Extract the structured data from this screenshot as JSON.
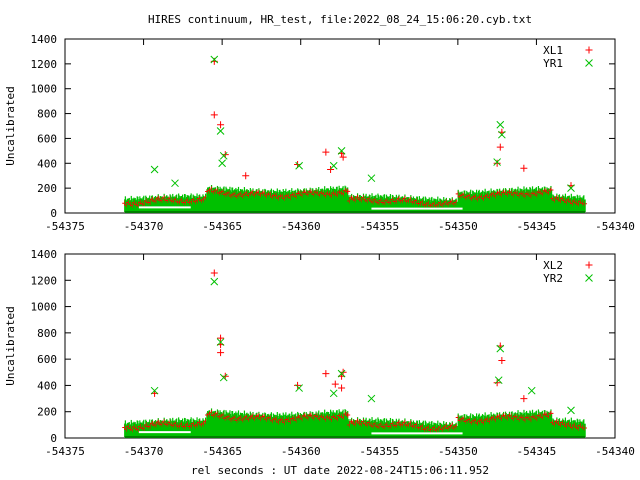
{
  "title": "HIRES continuum, HR_test, file:2022_08_24_15:06:20.cyb.txt",
  "xlabel": "rel seconds : UT date 2022-08-24T15:06:11.952",
  "chart_data": [
    {
      "type": "scatter",
      "ylabel": "Uncalibrated",
      "xlim": [
        -54375,
        -54340
      ],
      "ylim": [
        0,
        1400
      ],
      "xticks": [
        -54375,
        -54370,
        -54365,
        -54360,
        -54355,
        -54350,
        -54345,
        -54340
      ],
      "yticks": [
        0,
        200,
        400,
        600,
        800,
        1000,
        1200,
        1400
      ],
      "legend_position": "top-right",
      "series": [
        {
          "name": "XL1",
          "marker": "+",
          "color": "#ff0000",
          "points": [
            [
              -54365.5,
              1220
            ],
            [
              -54365.5,
              790
            ],
            [
              -54365.1,
              710
            ],
            [
              -54364.8,
              470
            ],
            [
              -54363.5,
              300
            ],
            [
              -54360.2,
              390
            ],
            [
              -54358.4,
              490
            ],
            [
              -54358.1,
              350
            ],
            [
              -54357.4,
              480
            ],
            [
              -54357.3,
              450
            ],
            [
              -54347.3,
              530
            ],
            [
              -54347.2,
              650
            ],
            [
              -54347.5,
              400
            ],
            [
              -54345.8,
              360
            ],
            [
              -54342.8,
              220
            ]
          ]
        },
        {
          "name": "YR1",
          "marker": "x",
          "color": "#00c000",
          "points": [
            [
              -54365.5,
              1235
            ],
            [
              -54365.1,
              660
            ],
            [
              -54364.9,
              460
            ],
            [
              -54365.0,
              400
            ],
            [
              -54369.3,
              350
            ],
            [
              -54368.0,
              240
            ],
            [
              -54360.1,
              380
            ],
            [
              -54357.9,
              380
            ],
            [
              -54357.4,
              500
            ],
            [
              -54355.5,
              280
            ],
            [
              -54347.3,
              710
            ],
            [
              -54347.2,
              630
            ],
            [
              -54347.5,
              410
            ],
            [
              -54342.8,
              200
            ]
          ]
        }
      ]
    },
    {
      "type": "scatter",
      "ylabel": "Uncalibrated",
      "xlim": [
        -54375,
        -54340
      ],
      "ylim": [
        0,
        1400
      ],
      "xticks": [
        -54375,
        -54370,
        -54365,
        -54360,
        -54355,
        -54350,
        -54345,
        -54340
      ],
      "yticks": [
        0,
        200,
        400,
        600,
        800,
        1000,
        1200,
        1400
      ],
      "legend_position": "top-right",
      "series": [
        {
          "name": "XL2",
          "marker": "+",
          "color": "#ff0000",
          "points": [
            [
              -54365.5,
              1255
            ],
            [
              -54365.1,
              760
            ],
            [
              -54365.1,
              710
            ],
            [
              -54365.1,
              650
            ],
            [
              -54364.8,
              470
            ],
            [
              -54369.3,
              340
            ],
            [
              -54360.2,
              400
            ],
            [
              -54358.4,
              490
            ],
            [
              -54357.8,
              410
            ],
            [
              -54357.4,
              470
            ],
            [
              -54357.3,
              500
            ],
            [
              -54357.4,
              380
            ],
            [
              -54347.3,
              700
            ],
            [
              -54347.2,
              590
            ],
            [
              -54347.5,
              420
            ],
            [
              -54345.8,
              300
            ]
          ]
        },
        {
          "name": "YR2",
          "marker": "x",
          "color": "#00c000",
          "points": [
            [
              -54365.5,
              1190
            ],
            [
              -54365.1,
              730
            ],
            [
              -54364.9,
              460
            ],
            [
              -54369.3,
              360
            ],
            [
              -54360.1,
              380
            ],
            [
              -54357.9,
              340
            ],
            [
              -54357.4,
              490
            ],
            [
              -54355.5,
              300
            ],
            [
              -54347.3,
              680
            ],
            [
              -54347.4,
              440
            ],
            [
              -54345.3,
              360
            ],
            [
              -54342.8,
              210
            ]
          ]
        }
      ]
    }
  ]
}
